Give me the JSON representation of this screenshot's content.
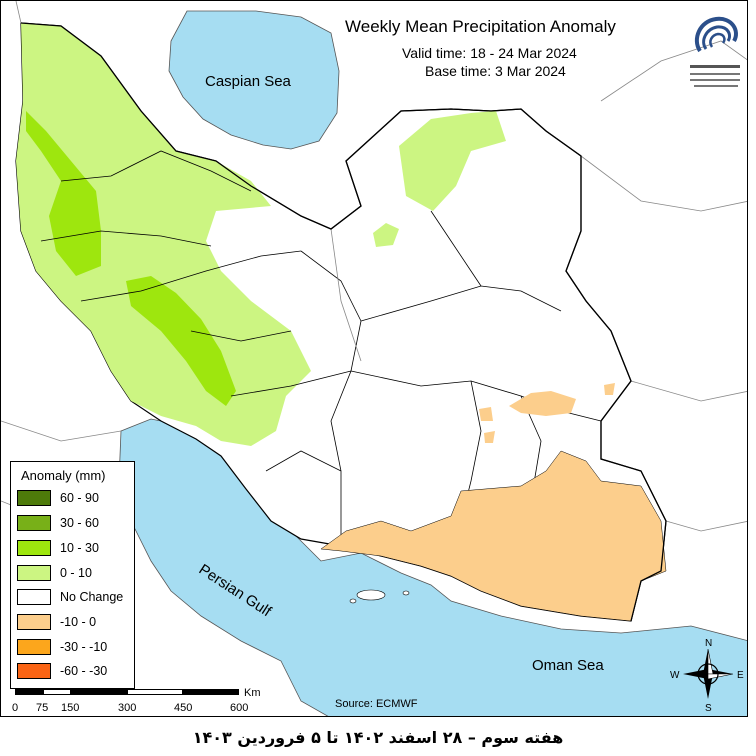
{
  "title": "Weekly Mean Precipitation Anomaly",
  "valid_time": "Valid time: 18 - 24 Mar 2024",
  "base_time": "Base time: 3 Mar 2024",
  "labels": {
    "caspian": "Caspian Sea",
    "persian_gulf": "Persian Gulf",
    "oman_sea": "Oman Sea"
  },
  "legend": {
    "title": "Anomaly (mm)",
    "items": [
      {
        "label": "60 - 90",
        "color": "#4d7a0a"
      },
      {
        "label": "30 - 60",
        "color": "#78b018"
      },
      {
        "label": "10 - 30",
        "color": "#9ee60e"
      },
      {
        "label": "0 - 10",
        "color": "#ccf582"
      },
      {
        "label": "No Change",
        "color": "#ffffff"
      },
      {
        "label": "-10 - 0",
        "color": "#fcce8c"
      },
      {
        "label": "-30 - -10",
        "color": "#fca61c"
      },
      {
        "label": "-60 - -30",
        "color": "#fa6414"
      }
    ]
  },
  "scale": {
    "unit": "Km",
    "ticks": [
      "0",
      "75",
      "150",
      "300",
      "450",
      "600"
    ]
  },
  "source": "Source: ECMWF",
  "compass": {
    "n": "N",
    "s": "S",
    "e": "E",
    "w": "W"
  },
  "footer": "هفته سوم – ۲۸ اسفند ۱۴۰۲ تا ۵ فروردین ۱۴۰۳",
  "colors": {
    "sea": "#a6ddf2",
    "wet_light": "#ccf582",
    "wet_mid": "#9ee60e",
    "dry_light": "#fcce8c"
  }
}
